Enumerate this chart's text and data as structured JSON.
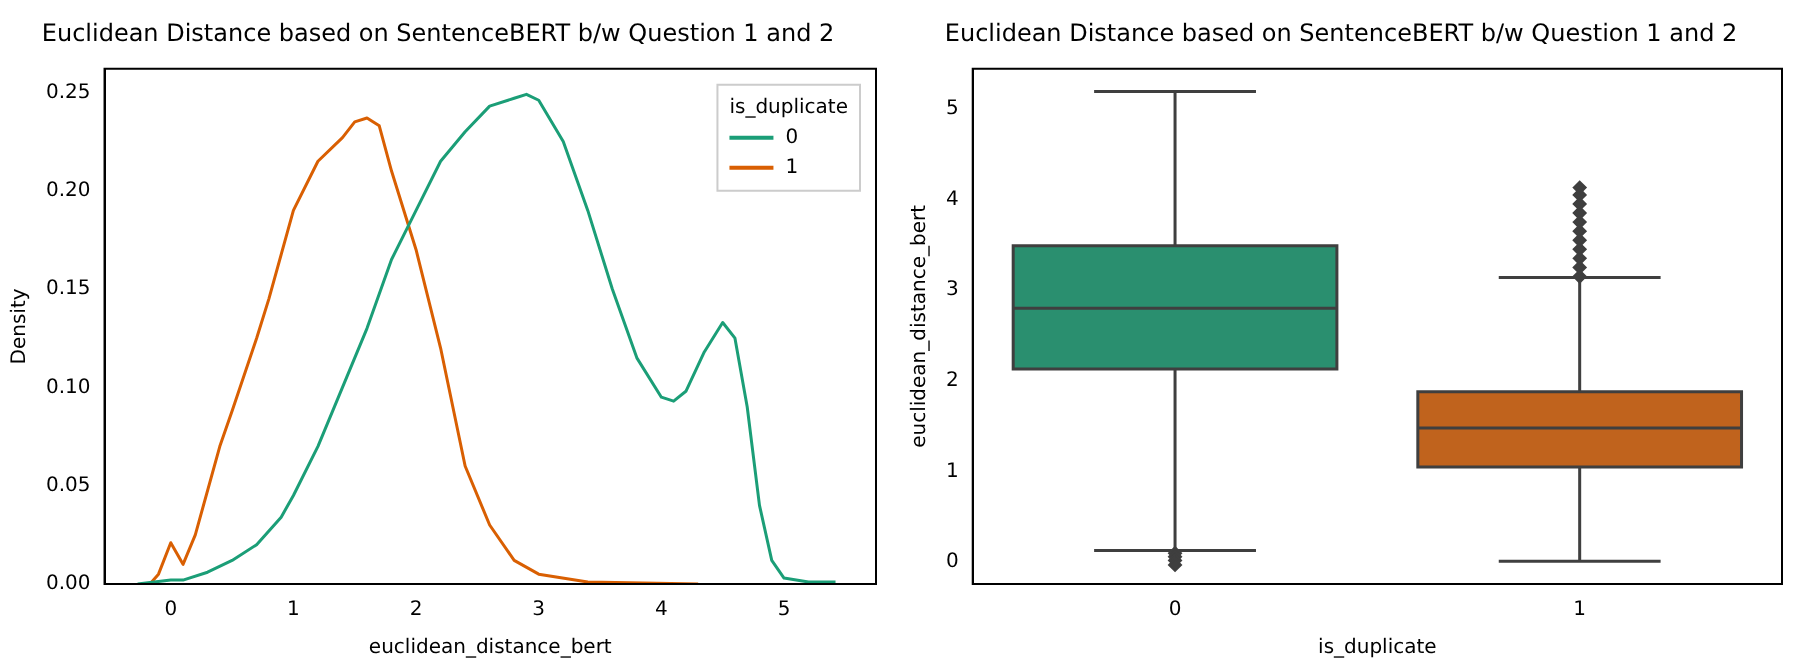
{
  "chart_data": [
    {
      "type": "line",
      "title": "Euclidean Distance based on SentenceBERT b/w Question 1 and 2",
      "xlabel": "euclidean_distance_bert",
      "ylabel": "Density",
      "legend_title": "is_duplicate",
      "legend": "top right",
      "grid": false,
      "marker": "none",
      "line_style": "solid",
      "xlim": [
        -0.54,
        5.75
      ],
      "xticks": [
        0,
        1,
        2,
        3,
        4,
        5
      ],
      "ylim": [
        0,
        0.262
      ],
      "yticks": [
        {
          "value": 0,
          "label": "0.00"
        },
        {
          "value": 0.05,
          "label": "0.05"
        },
        {
          "value": 0.1,
          "label": "0.10"
        },
        {
          "value": 0.15,
          "label": "0.15"
        },
        {
          "value": 0.2,
          "label": "0.20"
        },
        {
          "value": 0.25,
          "label": "0.25"
        }
      ],
      "series": [
        {
          "name": "0",
          "color": "#1b9e77",
          "x": [
            -0.27,
            0,
            0.1,
            0.3,
            0.5,
            0.7,
            0.9,
            1.0,
            1.2,
            1.4,
            1.6,
            1.8,
            2.0,
            2.2,
            2.4,
            2.6,
            2.8,
            2.9,
            3.0,
            3.2,
            3.4,
            3.6,
            3.8,
            4.0,
            4.1,
            4.2,
            4.35,
            4.5,
            4.6,
            4.7,
            4.8,
            4.9,
            5.0,
            5.2,
            5.42
          ],
          "values": [
            0,
            0.002,
            0.002,
            0.006,
            0.012,
            0.02,
            0.034,
            0.045,
            0.07,
            0.1,
            0.13,
            0.165,
            0.19,
            0.215,
            0.23,
            0.243,
            0.247,
            0.249,
            0.246,
            0.225,
            0.19,
            0.15,
            0.115,
            0.095,
            0.093,
            0.098,
            0.118,
            0.133,
            0.125,
            0.09,
            0.04,
            0.012,
            0.003,
            0.001,
            0.001
          ]
        },
        {
          "name": "1",
          "color": "#d95f02",
          "x": [
            -0.17,
            -0.1,
            0,
            0.1,
            0.2,
            0.4,
            0.5,
            0.7,
            0.8,
            1.0,
            1.2,
            1.4,
            1.5,
            1.6,
            1.7,
            1.8,
            2.0,
            2.2,
            2.4,
            2.6,
            2.8,
            3.0,
            3.4,
            4.3
          ],
          "values": [
            0,
            0.005,
            0.021,
            0.01,
            0.025,
            0.07,
            0.088,
            0.125,
            0.145,
            0.19,
            0.215,
            0.227,
            0.235,
            0.237,
            0.233,
            0.21,
            0.17,
            0.12,
            0.06,
            0.03,
            0.012,
            0.005,
            0.001,
            0
          ]
        }
      ]
    },
    {
      "type": "box",
      "title": "Euclidean Distance based on SentenceBERT b/w Question 1 and 2",
      "xlabel": "is_duplicate",
      "ylabel": "euclidean_distance_bert",
      "grid": false,
      "categories": [
        "0",
        "1"
      ],
      "colors": [
        "#2a8f6f",
        "#c0631d"
      ],
      "ylim": [
        -0.24,
        5.44
      ],
      "yticks": [
        0,
        1,
        2,
        3,
        4,
        5
      ],
      "boxes": [
        {
          "low": 0.13,
          "q1": 2.13,
          "median": 2.8,
          "q3": 3.49,
          "high": 5.19,
          "outliers": [
            0.1,
            0.06,
            0.02,
            -0.03
          ]
        },
        {
          "low": 0.01,
          "q1": 1.05,
          "median": 1.48,
          "q3": 1.88,
          "high": 3.14,
          "outliers": [
            3.15,
            3.25,
            3.35,
            3.45,
            3.55,
            3.65,
            3.75,
            3.85,
            3.95,
            4.05,
            4.13
          ]
        }
      ]
    }
  ]
}
